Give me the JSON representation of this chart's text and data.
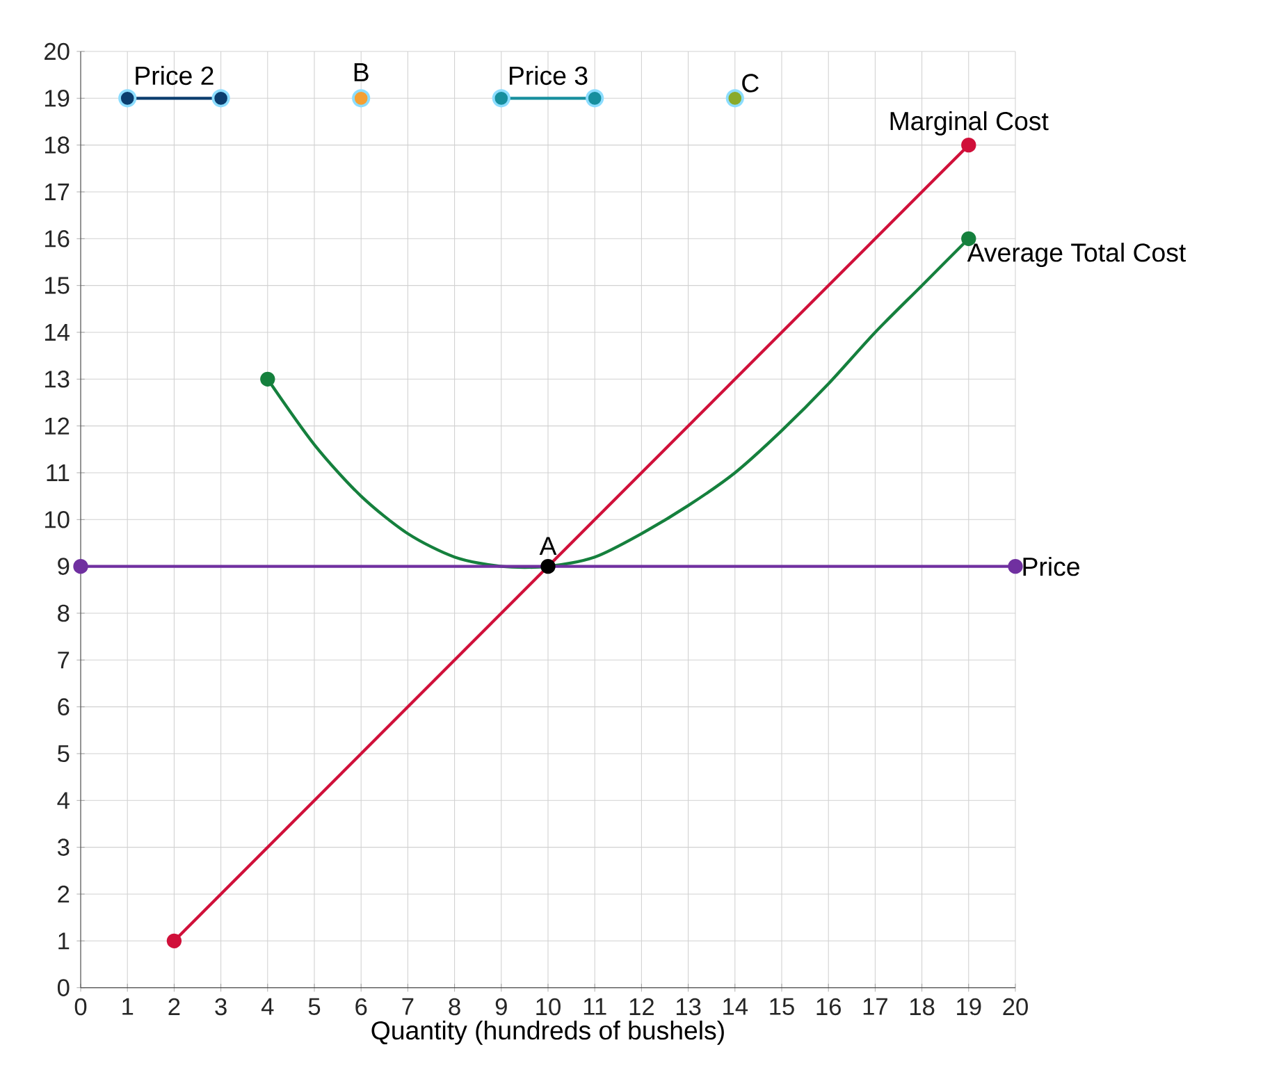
{
  "chart_data": {
    "type": "line",
    "xlabel": "Quantity (hundreds of bushels)",
    "xlim": [
      0,
      20
    ],
    "ylim": [
      0,
      20
    ],
    "xticks": [
      0,
      1,
      2,
      3,
      4,
      5,
      6,
      7,
      8,
      9,
      10,
      11,
      12,
      13,
      14,
      15,
      16,
      17,
      18,
      19,
      20
    ],
    "yticks": [
      0,
      1,
      2,
      3,
      4,
      5,
      6,
      7,
      8,
      9,
      10,
      11,
      12,
      13,
      14,
      15,
      16,
      17,
      18,
      19,
      20
    ],
    "grid": true,
    "legend": false,
    "marker": "circle",
    "series": [
      {
        "name": "Price 2",
        "type": "line",
        "color": "#0b3d6e",
        "x": [
          1,
          3
        ],
        "values": [
          19,
          19
        ]
      },
      {
        "name": "B",
        "type": "scatter",
        "color": "#f5a033",
        "x": [
          6
        ],
        "values": [
          19
        ]
      },
      {
        "name": "Price 3",
        "type": "line",
        "color": "#178f9e",
        "x": [
          9,
          11
        ],
        "values": [
          19,
          19
        ]
      },
      {
        "name": "C",
        "type": "scatter",
        "color": "#8aaa2a",
        "x": [
          14
        ],
        "values": [
          19
        ]
      },
      {
        "name": "Marginal Cost",
        "type": "line",
        "color": "#d0103a",
        "x": [
          2,
          19
        ],
        "values": [
          1,
          18
        ]
      },
      {
        "name": "Average Total Cost",
        "marker": "none",
        "color": "#15803d",
        "x": [
          4,
          5,
          6,
          7,
          8,
          9,
          10,
          11,
          12,
          13,
          14,
          15,
          16,
          17,
          18,
          19
        ],
        "values": [
          13,
          11.6,
          10.5,
          9.7,
          9.2,
          9,
          9,
          9.2,
          9.7,
          10.3,
          11,
          11.9,
          12.9,
          14,
          15,
          16
        ]
      },
      {
        "type": "scatter",
        "color": "#15803d",
        "x": [
          4,
          19
        ],
        "values": [
          13,
          16
        ]
      },
      {
        "name": "Price",
        "type": "line",
        "color": "#7030a0",
        "x": [
          0,
          20
        ],
        "values": [
          9,
          9
        ]
      },
      {
        "name": "A",
        "type": "scatter",
        "color": "#000000",
        "x": [
          10
        ],
        "values": [
          9
        ]
      }
    ]
  }
}
